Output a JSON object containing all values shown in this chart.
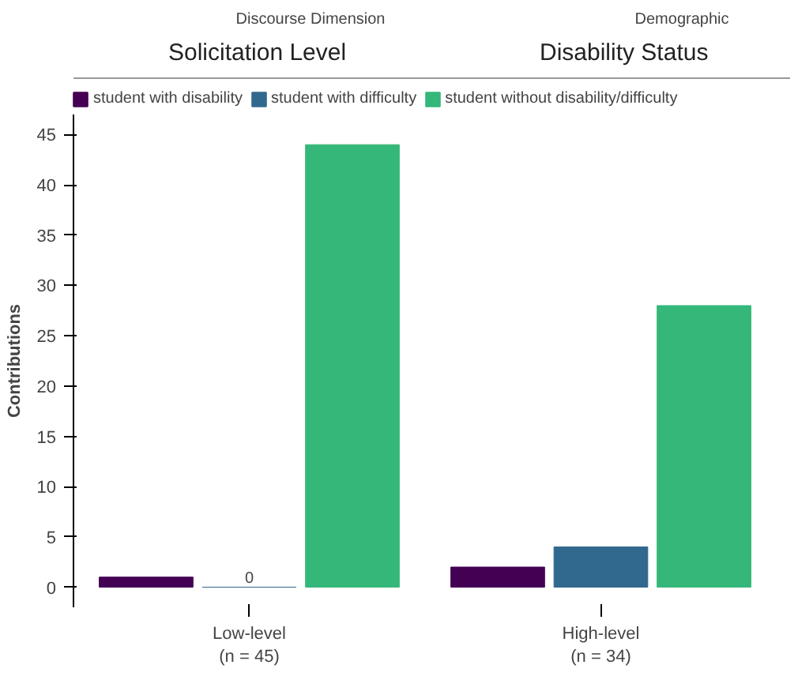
{
  "chart_data": {
    "type": "bar",
    "ylabel": "Contributions",
    "categories": [
      "Low-level\n(n = 45)",
      "High-level\n(n = 34)"
    ],
    "series": [
      {
        "name": "student with disability",
        "color": "#440154",
        "values": [
          1,
          2
        ]
      },
      {
        "name": "student with difficulty",
        "color": "#31688e",
        "values": [
          0,
          4
        ]
      },
      {
        "name": "student without disability/difficulty",
        "color": "#35b779",
        "values": [
          44,
          28
        ]
      }
    ],
    "ylim": [
      -2,
      47
    ],
    "yticks": [
      0,
      5,
      10,
      15,
      20,
      25,
      30,
      35,
      40,
      45
    ],
    "grid": false,
    "legend": "top left",
    "annotations": [
      "Discourse Dimension",
      "Solicitation Level",
      "Demographic",
      "Disability Status",
      {
        "text": "0",
        "x": "Low-level\n(n = 45)",
        "y": 0
      }
    ]
  }
}
